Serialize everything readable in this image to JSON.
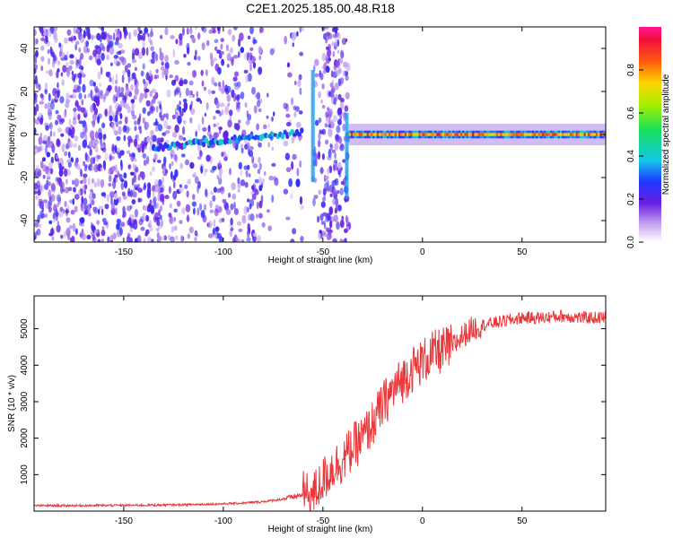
{
  "title": "C2E1.2025.185.00.48.R18",
  "colors": {
    "snr_line": "#e8383b",
    "spectrum_low": "#7b2fe0",
    "spectrum_mid": "#1aa0ff",
    "spectrum_high": "#e8283a",
    "axis": "#000000"
  },
  "chart_data": [
    {
      "type": "heatmap",
      "title": "C2E1.2025.185.00.48.R18",
      "xlabel": "Height of straight line (km)",
      "ylabel": "Frequency (Hz)",
      "xlim": [
        -195,
        92
      ],
      "ylim": [
        -50,
        50
      ],
      "xticks": [
        -150,
        -100,
        -50,
        0,
        50
      ],
      "xtick_labels": [
        "-150",
        "-100",
        "-50",
        "0",
        "50"
      ],
      "yticks": [
        -40,
        -20,
        0,
        20,
        40
      ],
      "ytick_labels": [
        "-40",
        "-20",
        "0",
        "20",
        "40"
      ],
      "colorbar": {
        "label": "Normalized spectral amplitude",
        "range": [
          0,
          1
        ],
        "ticks": [
          0.0,
          0.2,
          0.4,
          0.6,
          0.8
        ],
        "tick_labels": [
          "0.0",
          "0.2",
          "0.4",
          "0.6",
          "0.8"
        ],
        "colormap": "rainbow (violet-blue-cyan-green-yellow-red)"
      },
      "carrier_trace": {
        "frequency_hz": 0,
        "segments": [
          {
            "x_start": -135,
            "x_end": -60,
            "freq": [
              -6,
              1
            ],
            "amplitude": 0.3
          },
          {
            "x_start": -37,
            "x_end": 92,
            "freq": [
              0,
              0
            ],
            "amplitude": 0.95
          }
        ]
      },
      "noise_region": {
        "x_start": -195,
        "x_end": -37,
        "amplitude": 0.15
      }
    },
    {
      "type": "line",
      "xlabel": "Height of straight line (km)",
      "ylabel": "SNR (10 * v/v)",
      "xlim": [
        -195,
        92
      ],
      "ylim": [
        0,
        5900
      ],
      "xticks": [
        -150,
        -100,
        -50,
        0,
        50
      ],
      "xtick_labels": [
        "-150",
        "-100",
        "-50",
        "0",
        "50"
      ],
      "yticks": [
        1000,
        2000,
        3000,
        4000,
        5000
      ],
      "ytick_labels": [
        "1000",
        "2000",
        "3000",
        "4000",
        "5000"
      ],
      "grid": false,
      "series": [
        {
          "x": [
            -195,
            -180,
            -160,
            -140,
            -120,
            -100,
            -90,
            -80,
            -70,
            -60,
            -55,
            -50,
            -45,
            -40,
            -35,
            -30,
            -25,
            -20,
            -15,
            -10,
            -5,
            0,
            5,
            10,
            15,
            20,
            25,
            30,
            40,
            50,
            60,
            70,
            80,
            92
          ],
          "y": [
            150,
            150,
            155,
            160,
            175,
            200,
            220,
            260,
            330,
            450,
            420,
            850,
            1200,
            1400,
            1750,
            2000,
            2400,
            2900,
            3300,
            3600,
            3900,
            4100,
            4300,
            4400,
            4500,
            4800,
            5000,
            5100,
            5200,
            5300,
            5300,
            5350,
            5300,
            5300
          ]
        }
      ]
    }
  ]
}
